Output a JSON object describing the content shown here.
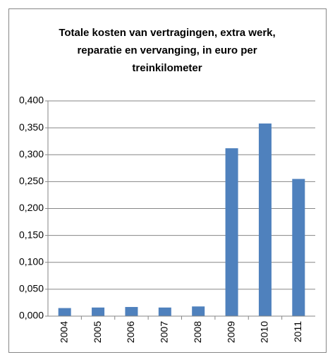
{
  "chart_data": {
    "type": "bar",
    "title": "Totale kosten van vertragingen, extra werk, reparatie en vervanging, in euro per treinkilometer",
    "categories": [
      "2004",
      "2005",
      "2006",
      "2007",
      "2008",
      "2009",
      "2010",
      "2011"
    ],
    "values": [
      0.015,
      0.016,
      0.017,
      0.016,
      0.018,
      0.312,
      0.358,
      0.255
    ],
    "color": "#4f81bd",
    "ylim": [
      0,
      0.4
    ],
    "yticks": [
      {
        "value": 0,
        "label": "0,000"
      },
      {
        "value": 0.05,
        "label": "0,050"
      },
      {
        "value": 0.1,
        "label": "0,100"
      },
      {
        "value": 0.15,
        "label": "0,150"
      },
      {
        "value": 0.2,
        "label": "0,200"
      },
      {
        "value": 0.25,
        "label": "0,250"
      },
      {
        "value": 0.3,
        "label": "0,300"
      },
      {
        "value": 0.35,
        "label": "0,350"
      },
      {
        "value": 0.4,
        "label": "0,400"
      }
    ],
    "grid": true
  }
}
